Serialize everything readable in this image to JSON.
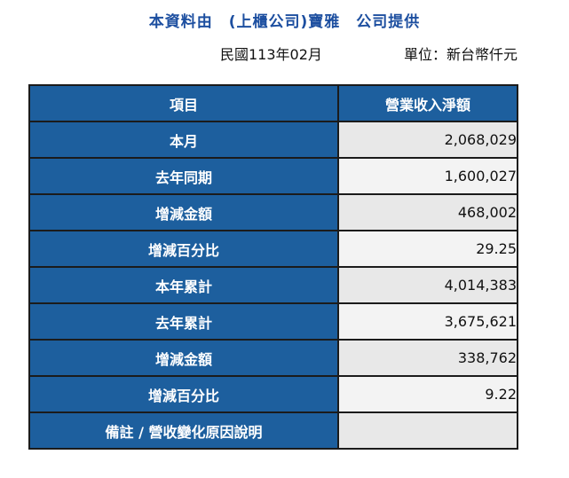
{
  "title": "本資料由　(上櫃公司)寶雅　公司提供",
  "date": "民國113年02月",
  "unit": "單位：新台幣仟元",
  "table": {
    "headers": [
      "項目",
      "營業收入淨額"
    ],
    "rows": [
      {
        "label": "本月",
        "value": "2,068,029"
      },
      {
        "label": "去年同期",
        "value": "1,600,027"
      },
      {
        "label": "增減金額",
        "value": "468,002"
      },
      {
        "label": "增減百分比",
        "value": "29.25"
      },
      {
        "label": "本年累計",
        "value": "4,014,383"
      },
      {
        "label": "去年累計",
        "value": "3,675,621"
      },
      {
        "label": "增減金額",
        "value": "338,762"
      },
      {
        "label": "增減百分比",
        "value": "9.22"
      },
      {
        "label": "備註 / 營收變化原因說明",
        "value": ""
      }
    ]
  }
}
